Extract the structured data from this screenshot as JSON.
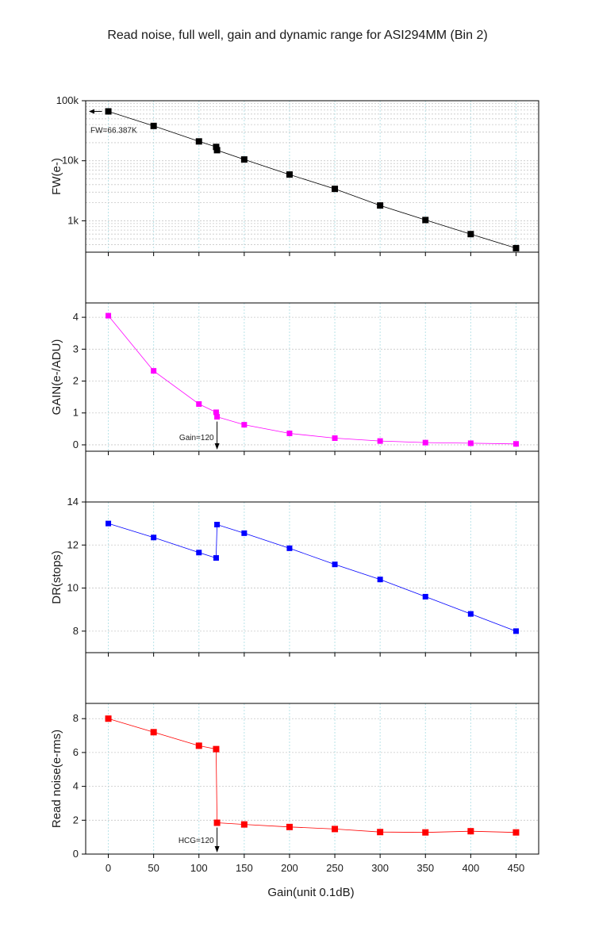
{
  "title": "Read noise, full well, gain and dynamic range for ASI294MM (Bin 2)",
  "xlabel": "Gain(unit 0.1dB)",
  "chart_data": {
    "type": "line",
    "title": "Read noise, full well, gain and dynamic range for ASI294MM (Bin 2)",
    "xlabel": "Gain(unit 0.1dB)",
    "xlim": [
      -25,
      475
    ],
    "xticks": [
      0,
      50,
      100,
      150,
      200,
      250,
      300,
      350,
      400,
      450
    ],
    "grid": true,
    "panels": [
      {
        "id": "fw",
        "ylabel": "FW(e-)",
        "scale": "log",
        "ylim": [
          300,
          100000
        ],
        "yticks": [
          1000,
          10000,
          100000
        ],
        "yticklabels": [
          "1k",
          "10k",
          "100k"
        ],
        "color": "#000000",
        "x": [
          0,
          50,
          100,
          119,
          120,
          150,
          200,
          250,
          300,
          350,
          400,
          450
        ],
        "y": [
          66387,
          38000,
          21000,
          17000,
          15000,
          10500,
          5900,
          3400,
          1800,
          1030,
          600,
          350
        ],
        "annotation": {
          "text": "FW=66.387K",
          "x": 0,
          "y": 66387
        }
      },
      {
        "id": "gain",
        "ylabel": "GAIN(e-/ADU)",
        "scale": "linear",
        "ylim": [
          -0.2,
          4.45
        ],
        "yticks": [
          0,
          1,
          2,
          3,
          4
        ],
        "color": "#ff00ff",
        "x": [
          0,
          50,
          100,
          119,
          120,
          150,
          200,
          250,
          300,
          350,
          400,
          450
        ],
        "y": [
          4.05,
          2.32,
          1.28,
          1.02,
          0.88,
          0.63,
          0.36,
          0.21,
          0.12,
          0.07,
          0.05,
          0.03
        ],
        "annotation": {
          "text": "Gain=120",
          "x": 120,
          "y": 0.88
        }
      },
      {
        "id": "dr",
        "ylabel": "DR(stops)",
        "scale": "linear",
        "ylim": [
          7,
          14
        ],
        "yticks": [
          8,
          10,
          12,
          14
        ],
        "color": "#0000ff",
        "x": [
          0,
          50,
          100,
          119,
          120,
          150,
          200,
          250,
          300,
          350,
          400,
          450
        ],
        "y": [
          13.0,
          12.35,
          11.65,
          11.4,
          12.95,
          12.55,
          11.85,
          11.1,
          10.4,
          9.6,
          8.8,
          8.0
        ]
      },
      {
        "id": "rn",
        "ylabel": "Read noise(e-rms)",
        "scale": "linear",
        "ylim": [
          0,
          8.9
        ],
        "yticks": [
          0,
          2,
          4,
          6,
          8
        ],
        "color": "#ff0000",
        "x": [
          0,
          50,
          100,
          119,
          120,
          150,
          200,
          250,
          300,
          350,
          400,
          450
        ],
        "y": [
          8.0,
          7.2,
          6.4,
          6.2,
          1.85,
          1.75,
          1.6,
          1.48,
          1.3,
          1.28,
          1.35,
          1.28
        ],
        "annotation": {
          "text": "HCG=120",
          "x": 120,
          "y": 1.85
        }
      }
    ]
  }
}
